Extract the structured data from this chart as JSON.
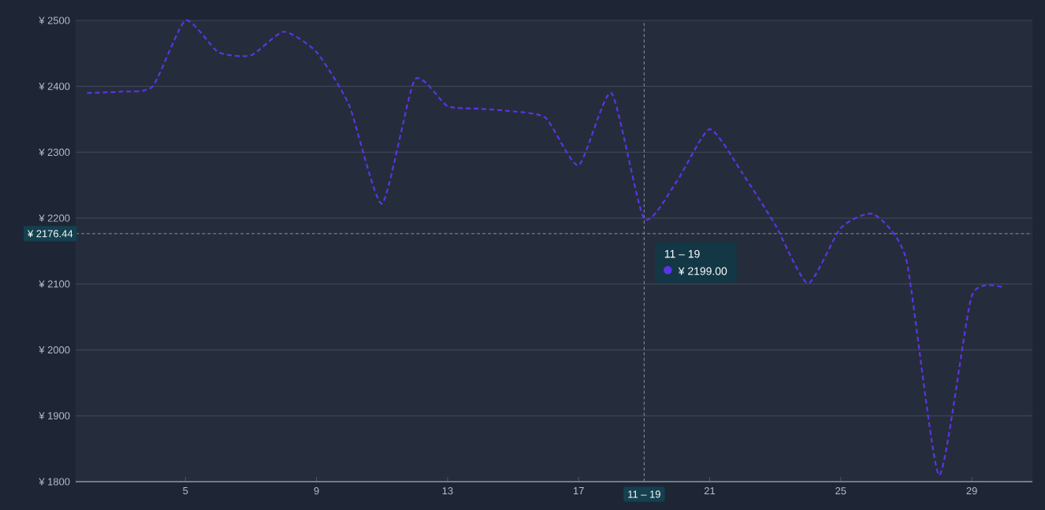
{
  "chart_data": {
    "type": "line",
    "x": [
      2,
      3,
      4,
      5,
      6,
      7,
      8,
      9,
      10,
      11,
      12,
      13,
      14,
      15,
      16,
      17,
      18,
      19,
      20,
      21,
      22,
      23,
      24,
      25,
      26,
      27,
      28,
      29,
      30
    ],
    "series": [
      {
        "color": "#5a35e6",
        "values": [
          2390,
          2392,
          2400,
          2500,
          2452,
          2447,
          2483,
          2452,
          2371,
          2222,
          2410,
          2370,
          2366,
          2362,
          2352,
          2280,
          2390,
          2199,
          2256,
          2335,
          2268,
          2190,
          2101,
          2185,
          2206,
          2137,
          1810,
          2082,
          2094
        ]
      }
    ],
    "xlim": [
      1.65,
      30.85
    ],
    "xticks": [
      5,
      9,
      13,
      17,
      21,
      25,
      29
    ],
    "ylim": [
      1800,
      2500
    ],
    "yticks": [
      {
        "value": 1800,
        "label": "¥ 1800"
      },
      {
        "value": 1900,
        "label": "¥ 1900"
      },
      {
        "value": 2000,
        "label": "¥ 2000"
      },
      {
        "value": 2100,
        "label": "¥ 2100"
      },
      {
        "value": 2200,
        "label": "¥ 2200"
      },
      {
        "value": 2300,
        "label": "¥ 2300"
      },
      {
        "value": 2400,
        "label": "¥ 2400"
      },
      {
        "value": 2500,
        "label": "¥ 2500"
      }
    ],
    "grid": "y",
    "marker": "none",
    "line_style": "dashed",
    "ref_lines": [
      {
        "axis": "x",
        "value": 19,
        "label": "11 – 19",
        "color": "#8a93a3",
        "line_style": "dashed"
      },
      {
        "axis": "y",
        "value": 2176.44,
        "label": "¥ 2176.44",
        "color": "#8a93a3",
        "line_style": "dashed"
      }
    ],
    "annotations": [
      "11 – 19",
      "¥ 2199.00"
    ]
  }
}
